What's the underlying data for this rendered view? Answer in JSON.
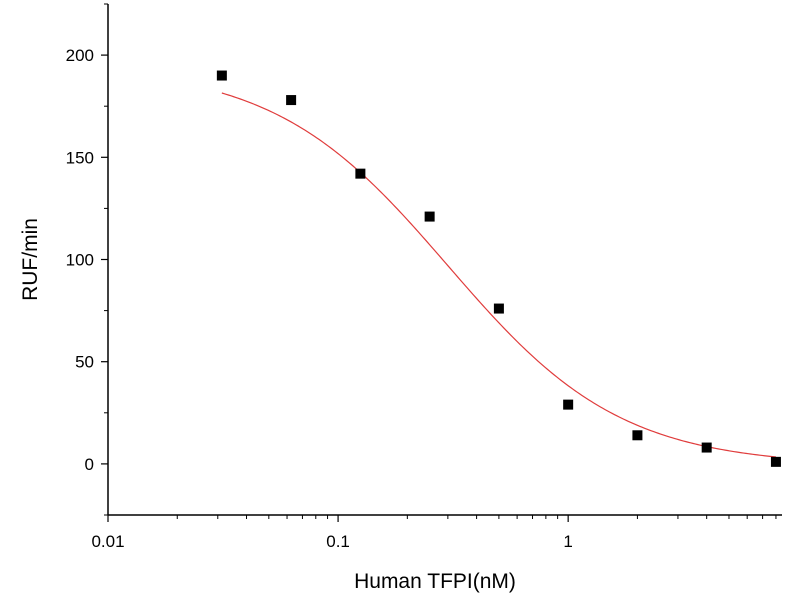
{
  "chart_data": {
    "type": "scatter",
    "title": "",
    "xlabel": "Human TFPI(nM)",
    "ylabel": "RUF/min",
    "x_scale": "log",
    "xlim": [
      0.01,
      8.5
    ],
    "ylim": [
      -25,
      225
    ],
    "x_ticks": [
      0.01,
      0.1,
      1
    ],
    "x_tick_labels": [
      "0.01",
      "0.1",
      "1"
    ],
    "y_ticks": [
      0,
      50,
      100,
      150,
      200
    ],
    "y_tick_labels": [
      "0",
      "50",
      "100",
      "150",
      "200"
    ],
    "grid": false,
    "legend": "none",
    "series": [
      {
        "kind": "points",
        "marker": "square",
        "color": "#000000",
        "x": [
          0.03125,
          0.0625,
          0.125,
          0.25,
          0.5,
          1,
          2,
          4,
          8
        ],
        "y": [
          190,
          178,
          142,
          121,
          76,
          29,
          14,
          8,
          1
        ]
      },
      {
        "kind": "fit-curve",
        "model": "4PL",
        "color": "#e03c3c",
        "params": {
          "top": 195,
          "bottom": -1,
          "ec50": 0.3,
          "hill": 1.15
        },
        "x_range": [
          0.03125,
          8
        ]
      }
    ]
  }
}
